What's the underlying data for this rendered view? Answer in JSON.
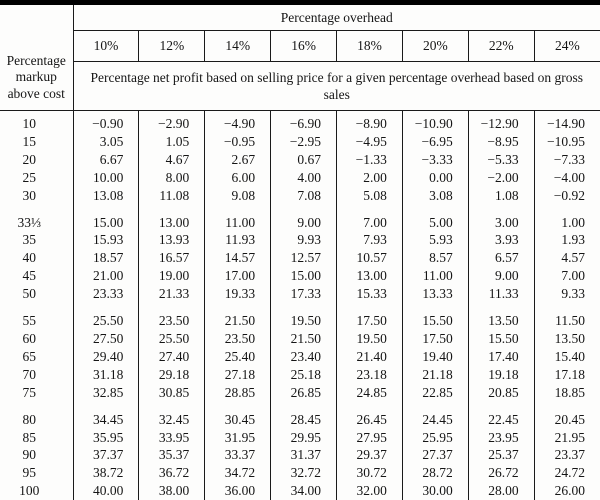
{
  "colors": {
    "rule": "#000000",
    "text": "#151515",
    "background": "#fdfdfc"
  },
  "chart_data": {
    "type": "table",
    "title": "Percentage overhead",
    "corner_label": "Percentage\nmarkup\nabove cost",
    "column_headers": [
      "10%",
      "12%",
      "14%",
      "16%",
      "18%",
      "20%",
      "22%",
      "24%"
    ],
    "subheader": "Percentage net profit based on selling price for a given percentage overhead based on gross sales",
    "row_groups": [
      {
        "rows": [
          {
            "markup": "10",
            "values": [
              "−0.90",
              "−2.90",
              "−4.90",
              "−6.90",
              "−8.90",
              "−10.90",
              "−12.90",
              "−14.90"
            ]
          },
          {
            "markup": "15",
            "values": [
              "3.05",
              "1.05",
              "−0.95",
              "−2.95",
              "−4.95",
              "−6.95",
              "−8.95",
              "−10.95"
            ]
          },
          {
            "markup": "20",
            "values": [
              "6.67",
              "4.67",
              "2.67",
              "0.67",
              "−1.33",
              "−3.33",
              "−5.33",
              "−7.33"
            ]
          },
          {
            "markup": "25",
            "values": [
              "10.00",
              "8.00",
              "6.00",
              "4.00",
              "2.00",
              "0.00",
              "−2.00",
              "−4.00"
            ]
          },
          {
            "markup": "30",
            "values": [
              "13.08",
              "11.08",
              "9.08",
              "7.08",
              "5.08",
              "3.08",
              "1.08",
              "−0.92"
            ]
          }
        ]
      },
      {
        "rows": [
          {
            "markup": "33⅓",
            "values": [
              "15.00",
              "13.00",
              "11.00",
              "9.00",
              "7.00",
              "5.00",
              "3.00",
              "1.00"
            ]
          },
          {
            "markup": "35",
            "values": [
              "15.93",
              "13.93",
              "11.93",
              "9.93",
              "7.93",
              "5.93",
              "3.93",
              "1.93"
            ]
          },
          {
            "markup": "40",
            "values": [
              "18.57",
              "16.57",
              "14.57",
              "12.57",
              "10.57",
              "8.57",
              "6.57",
              "4.57"
            ]
          },
          {
            "markup": "45",
            "values": [
              "21.00",
              "19.00",
              "17.00",
              "15.00",
              "13.00",
              "11.00",
              "9.00",
              "7.00"
            ]
          },
          {
            "markup": "50",
            "values": [
              "23.33",
              "21.33",
              "19.33",
              "17.33",
              "15.33",
              "13.33",
              "11.33",
              "9.33"
            ]
          }
        ]
      },
      {
        "rows": [
          {
            "markup": "55",
            "values": [
              "25.50",
              "23.50",
              "21.50",
              "19.50",
              "17.50",
              "15.50",
              "13.50",
              "11.50"
            ]
          },
          {
            "markup": "60",
            "values": [
              "27.50",
              "25.50",
              "23.50",
              "21.50",
              "19.50",
              "17.50",
              "15.50",
              "13.50"
            ]
          },
          {
            "markup": "65",
            "values": [
              "29.40",
              "27.40",
              "25.40",
              "23.40",
              "21.40",
              "19.40",
              "17.40",
              "15.40"
            ]
          },
          {
            "markup": "70",
            "values": [
              "31.18",
              "29.18",
              "27.18",
              "25.18",
              "23.18",
              "21.18",
              "19.18",
              "17.18"
            ]
          },
          {
            "markup": "75",
            "values": [
              "32.85",
              "30.85",
              "28.85",
              "26.85",
              "24.85",
              "22.85",
              "20.85",
              "18.85"
            ]
          }
        ]
      },
      {
        "rows": [
          {
            "markup": "80",
            "values": [
              "34.45",
              "32.45",
              "30.45",
              "28.45",
              "26.45",
              "24.45",
              "22.45",
              "20.45"
            ]
          },
          {
            "markup": "85",
            "values": [
              "35.95",
              "33.95",
              "31.95",
              "29.95",
              "27.95",
              "25.95",
              "23.95",
              "21.95"
            ]
          },
          {
            "markup": "90",
            "values": [
              "37.37",
              "35.37",
              "33.37",
              "31.37",
              "29.37",
              "27.37",
              "25.37",
              "23.37"
            ]
          },
          {
            "markup": "95",
            "values": [
              "38.72",
              "36.72",
              "34.72",
              "32.72",
              "30.72",
              "28.72",
              "26.72",
              "24.72"
            ]
          },
          {
            "markup": "100",
            "values": [
              "40.00",
              "38.00",
              "36.00",
              "34.00",
              "32.00",
              "30.00",
              "28.00",
              "26.00"
            ]
          }
        ]
      }
    ]
  }
}
